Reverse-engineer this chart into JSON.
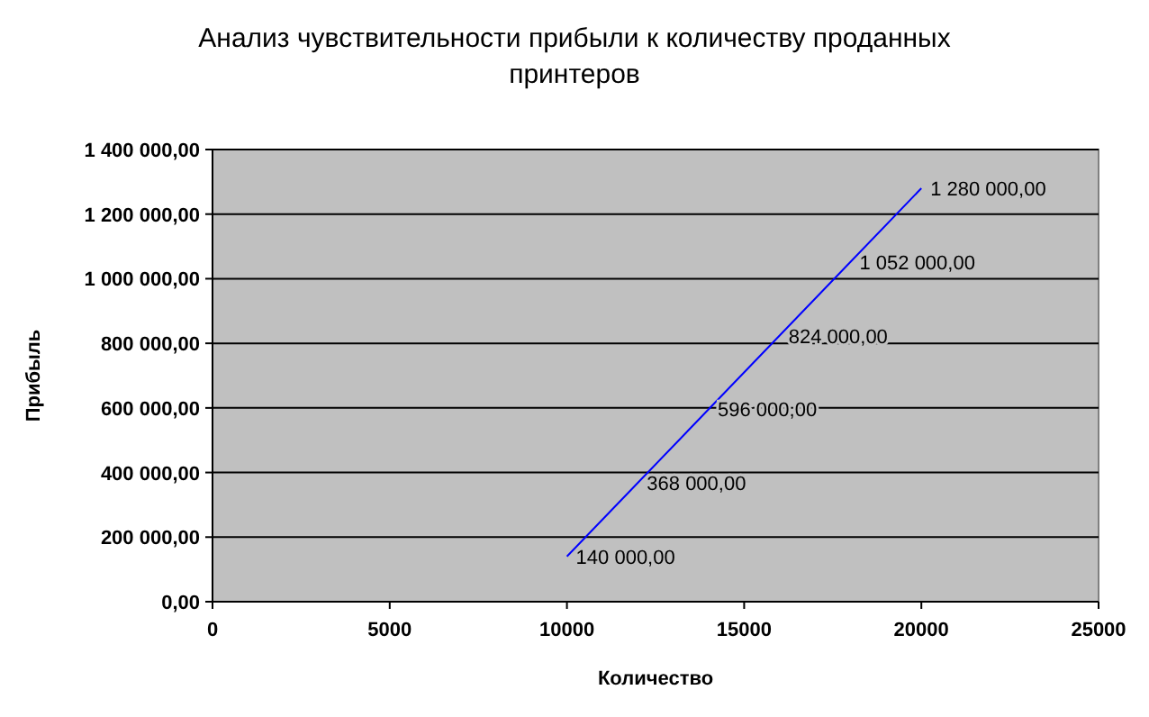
{
  "chart_data": {
    "type": "line",
    "title": "Анализ чувствительности прибыли к количеству проданных принтеров",
    "xlabel": "Количество",
    "ylabel": "Прибыль",
    "x": [
      10000,
      12000,
      14000,
      16000,
      18000,
      20000
    ],
    "series": [
      {
        "color": "#0000ff",
        "values": [
          140000,
          368000,
          596000,
          824000,
          1052000,
          1280000
        ],
        "value_labels": [
          "140 000,00",
          "368 000,00",
          "596 000,00",
          "824 000,00",
          "1 052 000,00",
          "1 280 000,00"
        ]
      }
    ],
    "xlim": [
      0,
      25000
    ],
    "xticks": [
      0,
      5000,
      10000,
      15000,
      20000,
      25000
    ],
    "ylim": [
      0,
      1400000
    ],
    "yticks": [
      {
        "value": 0,
        "label": "0,00"
      },
      {
        "value": 200000,
        "label": "200 000,00"
      },
      {
        "value": 400000,
        "label": "400 000,00"
      },
      {
        "value": 600000,
        "label": "600 000,00"
      },
      {
        "value": 800000,
        "label": "800 000,00"
      },
      {
        "value": 1000000,
        "label": "1 000 000,00"
      },
      {
        "value": 1200000,
        "label": "1 200 000,00"
      },
      {
        "value": 1400000,
        "label": "1 400 000,00"
      }
    ],
    "grid": "y",
    "marker": "none",
    "line_style": "solid"
  }
}
